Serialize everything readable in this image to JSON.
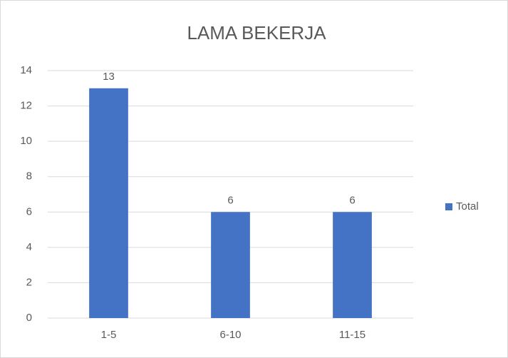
{
  "chart_data": {
    "type": "bar",
    "title": "LAMA BEKERJA",
    "categories": [
      "1-5",
      "6-10",
      "11-15"
    ],
    "series": [
      {
        "name": "Total",
        "color": "#4472c4",
        "values": [
          13,
          6,
          6
        ]
      }
    ],
    "ylim": [
      0,
      14
    ],
    "yticks": [
      0,
      2,
      4,
      6,
      8,
      10,
      12,
      14
    ],
    "grid": true,
    "legend": "right",
    "data_labels": true
  }
}
